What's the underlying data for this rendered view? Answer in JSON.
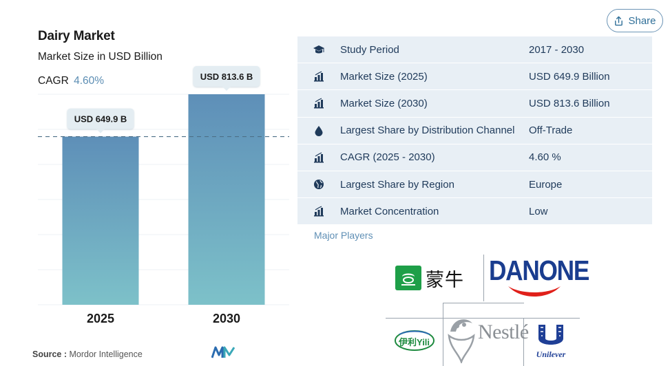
{
  "share": {
    "label": "Share"
  },
  "chart_header": {
    "title": "Dairy Market",
    "subtitle": "Market Size in USD Billion",
    "cagr_label": "CAGR",
    "cagr_value": "4.60%"
  },
  "chart_data": {
    "type": "bar",
    "title": "Dairy Market",
    "subtitle": "Market Size in USD Billion",
    "categories": [
      "2025",
      "2030"
    ],
    "values": [
      649.9,
      813.6
    ],
    "data_labels": [
      "USD 649.9 B",
      "USD 813.6 B"
    ],
    "xlabel": "",
    "ylabel": "",
    "ylim": [
      0,
      813.6
    ],
    "reference_line": 649.9,
    "colors": {
      "bar_top": "#5e8fb8",
      "bar_bottom": "#7dc1c9",
      "callout_bg": "#e4edf2",
      "reference": "#4d6f87"
    }
  },
  "source": {
    "prefix": "Source :",
    "name": "Mordor Intelligence"
  },
  "table": {
    "rows": [
      {
        "icon": "graduation-cap-icon",
        "label": "Study Period",
        "value": "2017 - 2030"
      },
      {
        "icon": "bar-chart-icon",
        "label": "Market Size (2025)",
        "value": "USD 649.9 Billion"
      },
      {
        "icon": "bar-chart-icon",
        "label": "Market Size (2030)",
        "value": "USD 813.6 Billion"
      },
      {
        "icon": "drop-icon",
        "label": "Largest Share by Distribution Channel",
        "value": "Off-Trade"
      },
      {
        "icon": "bar-chart-icon",
        "label": "CAGR (2025 - 2030)",
        "value": "4.60 %"
      },
      {
        "icon": "globe-icon",
        "label": "Largest Share by Region",
        "value": "Europe"
      },
      {
        "icon": "bar-chart-icon",
        "label": "Market Concentration",
        "value": "Low"
      }
    ]
  },
  "major_players": {
    "heading": "Major Players",
    "logos": {
      "mengniu": "蒙牛",
      "danone": "DANONE",
      "yili": "伊利Yili",
      "nestle": "Nestlé",
      "unilever": "Unilever"
    }
  }
}
